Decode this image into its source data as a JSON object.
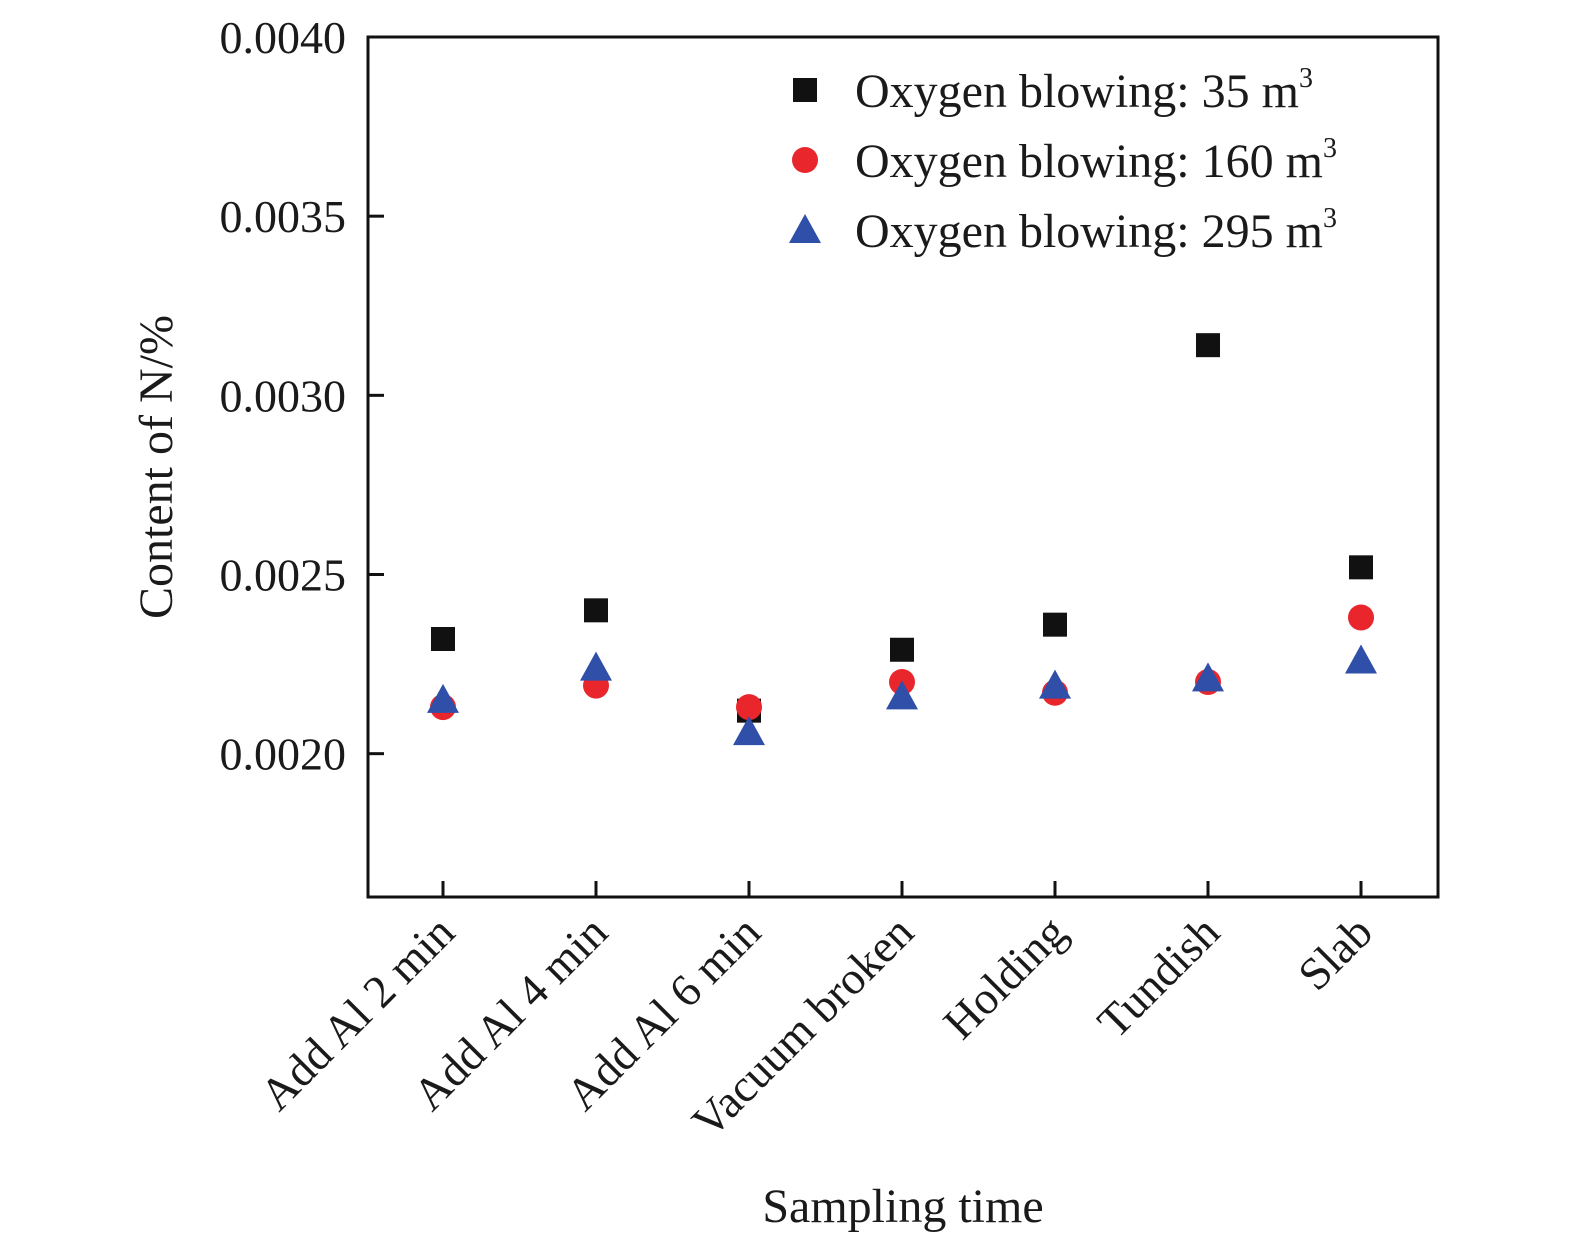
{
  "chart_data": {
    "type": "scatter",
    "title": "",
    "xlabel": "Sampling time",
    "ylabel": "Content of N/%",
    "categories": [
      "Add Al 2 min",
      "Add Al 4 min",
      "Add Al 6 min",
      "Vacuum broken",
      "Holding",
      "Tundish",
      "Slab"
    ],
    "ylim": [
      0.0016,
      0.004
    ],
    "yticks": [
      "0.0020",
      "0.0025",
      "0.0030",
      "0.0035",
      "0.0040"
    ],
    "grid": false,
    "legend_position": "top-right",
    "series": [
      {
        "name": "Oxygen blowing: 35 m",
        "name_superscript": "3",
        "marker": "square",
        "color": "#111111",
        "values": [
          0.00232,
          0.0024,
          0.00212,
          0.00229,
          0.00236,
          0.00314,
          0.00252
        ]
      },
      {
        "name": "Oxygen blowing: 160 m",
        "name_superscript": "3",
        "marker": "circle",
        "color": "#e8262c",
        "values": [
          0.00213,
          0.00219,
          0.00213,
          0.0022,
          0.00217,
          0.0022,
          0.00238
        ]
      },
      {
        "name": "Oxygen blowing: 295 m",
        "name_superscript": "3",
        "marker": "triangle",
        "color": "#2f4fa8",
        "values": [
          0.00215,
          0.00224,
          0.00206,
          0.00216,
          0.00219,
          0.00221,
          0.00226
        ]
      }
    ]
  }
}
